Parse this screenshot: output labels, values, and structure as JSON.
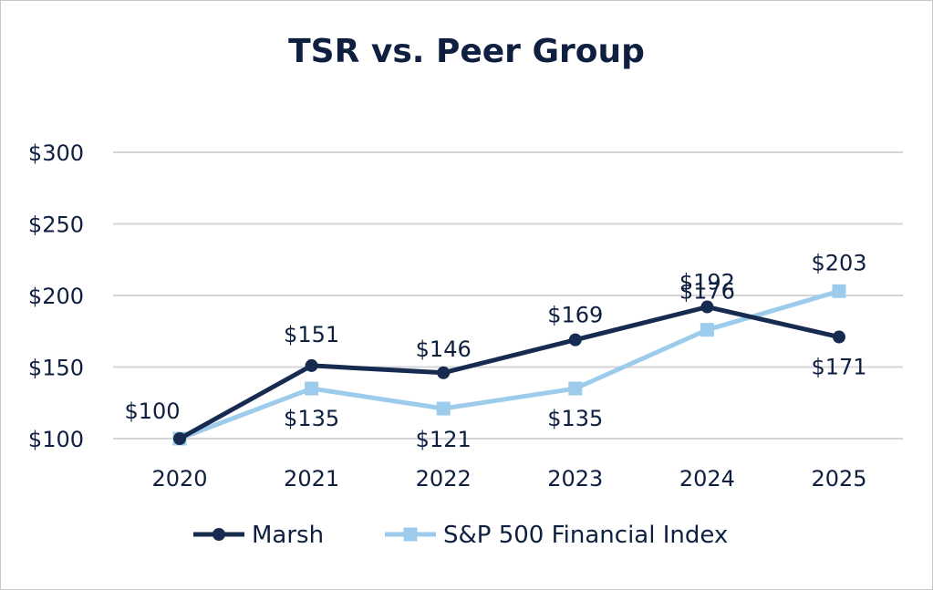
{
  "colors": {
    "marsh": "#172a4f",
    "sp": "#9ccbec",
    "grid": "#d4d4d9",
    "text": "#0f1f40"
  },
  "chart_data": {
    "type": "line",
    "title": "TSR vs. Peer Group",
    "xlabel": "",
    "ylabel": "",
    "categories": [
      "2020",
      "2021",
      "2022",
      "2023",
      "2024",
      "2025"
    ],
    "ylim": [
      100,
      300
    ],
    "yticks": [
      100,
      150,
      200,
      250,
      300
    ],
    "ytick_labels": [
      "$100",
      "$150",
      "$200",
      "$250",
      "$300"
    ],
    "grid": true,
    "legend_position": "bottom",
    "series": [
      {
        "name": "Marsh",
        "marker": "circle",
        "values": [
          100,
          151,
          146,
          169,
          192,
          171
        ],
        "labels": [
          "$100",
          "$151",
          "$146",
          "$169",
          "$192",
          "$171"
        ]
      },
      {
        "name": "S&P 500 Financial Index",
        "marker": "square",
        "values": [
          100,
          135,
          121,
          135,
          176,
          203
        ],
        "labels": [
          "",
          "$135",
          "$121",
          "$135",
          "$176",
          "$203"
        ]
      }
    ]
  }
}
